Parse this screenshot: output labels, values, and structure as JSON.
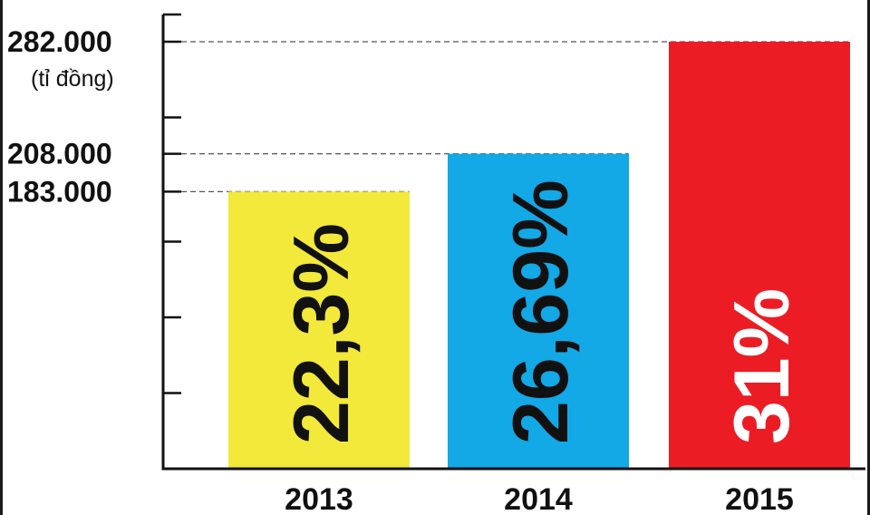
{
  "chart_data": {
    "type": "bar",
    "title": "",
    "xlabel": "",
    "ylabel": "",
    "unit_label": "(tỉ đồng)",
    "categories": [
      "2013",
      "2014",
      "2015"
    ],
    "values": [
      183000,
      208000,
      282000
    ],
    "value_tick_labels": [
      "282.000",
      "208.000",
      "183.000"
    ],
    "bar_labels": [
      "22,3%",
      "26,69%",
      "31%"
    ],
    "bar_colors": [
      "#f2e93a",
      "#13a8e6",
      "#ec1c24"
    ],
    "bar_label_colors": [
      "#111111",
      "#111111",
      "#ffffff"
    ],
    "ylim": [
      0,
      282000
    ],
    "y_tick_marks": [
      0,
      50000,
      100000,
      150000,
      183000,
      208000,
      232000,
      282000
    ],
    "grid": false,
    "reference_lines": "dashed",
    "legend": "none"
  }
}
